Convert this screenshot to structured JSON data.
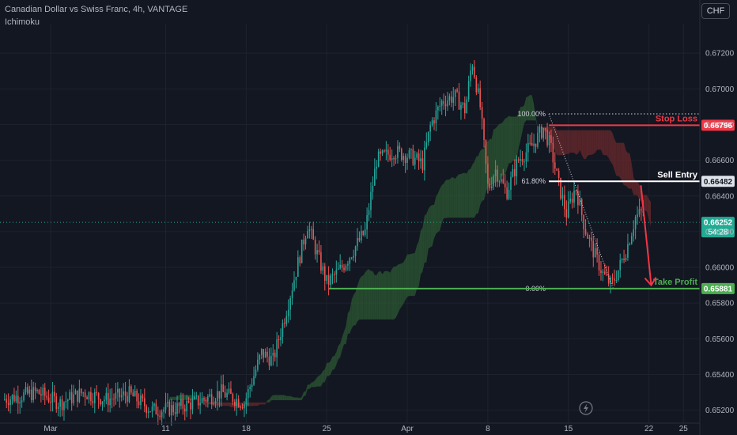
{
  "header": {
    "symbol_line": "Canadian Dollar vs Swiss Franc, 4h, VANTAGE",
    "indicator": "Ichimoku",
    "currency": "CHF"
  },
  "colors": {
    "background": "#131722",
    "up": "#26a69a",
    "down": "#ef5350",
    "cloud_bull": "#2c5a33",
    "cloud_bear": "#6b2a2c",
    "stop": "#f23645",
    "entry": "#ffffff",
    "target": "#4caf50",
    "current": "#22ab94"
  },
  "chart_data": {
    "type": "candlestick",
    "y_axis": {
      "ylim": [
        0.6518,
        0.6728
      ],
      "ticks": [
        0.652,
        0.654,
        0.656,
        0.658,
        0.66,
        0.662,
        0.664,
        0.666,
        0.668,
        0.67,
        0.672
      ],
      "tick_labels": [
        "0.65200",
        "0.65400",
        "0.65600",
        "0.65800",
        "0.66000",
        "0.66200",
        "0.66400",
        "0.66600",
        "0.66800",
        "0.67000",
        "0.67200"
      ]
    },
    "x_axis": {
      "ticks": [
        {
          "label": "Mar",
          "day": 0
        },
        {
          "label": "11",
          "day": 10
        },
        {
          "label": "18",
          "day": 17
        },
        {
          "label": "25",
          "day": 24
        },
        {
          "label": "Apr",
          "day": 31
        },
        {
          "label": "8",
          "day": 38
        },
        {
          "label": "15",
          "day": 45
        },
        {
          "label": "22",
          "day": 52
        },
        {
          "label": "25",
          "day": 55
        }
      ]
    },
    "levels": [
      {
        "name": "Stop Loss",
        "price": 0.66796,
        "label": "0.66796",
        "color": "#f23645"
      },
      {
        "name": "Sell Entry",
        "price": 0.66482,
        "label": "0.66482",
        "color": "#ffffff"
      },
      {
        "name": "Take Profit",
        "price": 0.65881,
        "label": "0.65881",
        "color": "#4caf50"
      }
    ],
    "current_price": {
      "price": 0.66252,
      "label": "0.66252",
      "countdown": "54:28"
    },
    "fib_labels": [
      "100.00%",
      "61.80%",
      "0.00%"
    ],
    "fib": {
      "top": 0.6686,
      "mid": 0.66483,
      "bottom": 0.65881
    },
    "arrow": {
      "from_day": 51.3,
      "from_price": 0.6646,
      "to_day": 52.2,
      "to_price": 0.659
    }
  }
}
